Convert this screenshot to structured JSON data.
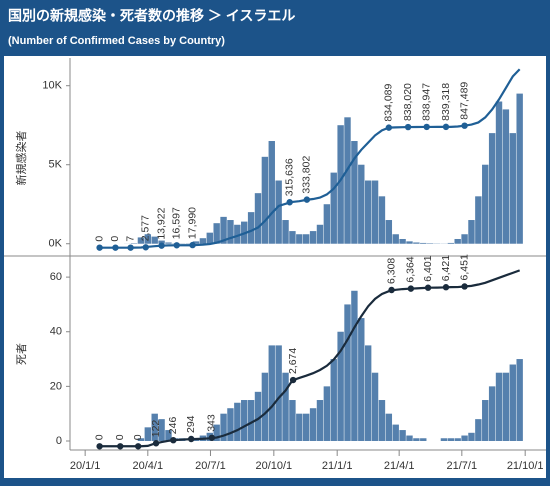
{
  "header": {
    "title": "国別の新規感染・死者数の推移 ＞ イスラエル",
    "subtitle": "(Number of Confirmed Cases by Country)"
  },
  "chart_data": [
    {
      "type": "bar",
      "ylabel": "新規感染者",
      "xlim": [
        "2019-12-10",
        "2021-10-08"
      ],
      "ylim": [
        -650,
        11500
      ],
      "yticks": [
        {
          "value": 0,
          "label": "0K"
        },
        {
          "value": 5000,
          "label": "5K"
        },
        {
          "value": 10000,
          "label": "10K"
        }
      ],
      "y2lim": [
        -44000,
        1290000
      ],
      "x": [
        "2020-01-22",
        "2020-02-01",
        "2020-02-11",
        "2020-02-21",
        "2020-03-02",
        "2020-03-12",
        "2020-03-22",
        "2020-04-01",
        "2020-04-11",
        "2020-04-21",
        "2020-05-01",
        "2020-05-11",
        "2020-05-21",
        "2020-05-31",
        "2020-06-10",
        "2020-06-20",
        "2020-06-30",
        "2020-07-10",
        "2020-07-20",
        "2020-07-30",
        "2020-08-09",
        "2020-08-19",
        "2020-08-29",
        "2020-09-08",
        "2020-09-18",
        "2020-09-28",
        "2020-10-08",
        "2020-10-18",
        "2020-10-28",
        "2020-11-07",
        "2020-11-17",
        "2020-11-27",
        "2020-12-07",
        "2020-12-17",
        "2020-12-27",
        "2021-01-06",
        "2021-01-16",
        "2021-01-26",
        "2021-02-05",
        "2021-02-15",
        "2021-02-25",
        "2021-03-07",
        "2021-03-17",
        "2021-03-27",
        "2021-04-06",
        "2021-04-16",
        "2021-04-26",
        "2021-05-06",
        "2021-05-16",
        "2021-05-26",
        "2021-06-05",
        "2021-06-15",
        "2021-06-25",
        "2021-07-05",
        "2021-07-15",
        "2021-07-25",
        "2021-08-04",
        "2021-08-14",
        "2021-08-24",
        "2021-09-03",
        "2021-09-13",
        "2021-09-23"
      ],
      "series": [
        {
          "type": "bar",
          "color": "#5580ad",
          "values": [
            0,
            0,
            0,
            0,
            5,
            30,
            400,
            600,
            450,
            200,
            80,
            20,
            15,
            20,
            150,
            350,
            700,
            1300,
            1700,
            1500,
            1200,
            1400,
            2000,
            3200,
            5500,
            6500,
            4000,
            1500,
            800,
            600,
            600,
            800,
            1200,
            2500,
            4500,
            7500,
            8000,
            6500,
            5000,
            4000,
            4000,
            3000,
            1500,
            600,
            300,
            150,
            80,
            50,
            30,
            15,
            10,
            50,
            300,
            600,
            1500,
            3000,
            5000,
            7000,
            9000,
            8500,
            7000,
            9500
          ]
        },
        {
          "type": "line",
          "axis": "y2",
          "color": "#1f5f96",
          "values": [
            0,
            0,
            0,
            1,
            3,
            100,
            1000,
            6000,
            10500,
            13900,
            16000,
            16500,
            16700,
            17000,
            18500,
            21000,
            25000,
            35000,
            50000,
            67000,
            82000,
            99000,
            117000,
            140000,
            185000,
            240000,
            290000,
            305000,
            318000,
            323000,
            332000,
            338000,
            348000,
            370000,
            410000,
            470000,
            545000,
            620000,
            680000,
            730000,
            780000,
            815000,
            834000,
            836000,
            837200,
            838050,
            838500,
            838800,
            838960,
            839050,
            839200,
            839500,
            842000,
            847500,
            855000,
            870000,
            905000,
            960000,
            1030000,
            1110000,
            1190000,
            1240000
          ]
        },
        {
          "type": "scatter",
          "axis": "y2",
          "color": "#1f5f96",
          "x": [
            "2020-01-22",
            "2020-02-14",
            "2020-03-07",
            "2020-03-29",
            "2020-04-21",
            "2020-05-13",
            "2020-06-05",
            "2020-10-24",
            "2020-11-18",
            "2021-03-17",
            "2021-04-14",
            "2021-05-11",
            "2021-06-08",
            "2021-07-05"
          ],
          "values": [
            0,
            0,
            7,
            2577,
            13922,
            16597,
            17990,
            315636,
            333802,
            834089,
            838020,
            838947,
            839318,
            847489
          ],
          "value_labels": [
            "0",
            "0",
            "7",
            "2,577",
            "13,922",
            "16,597",
            "17,990",
            "315,636",
            "333,802",
            "834,089",
            "838,020",
            "838,947",
            "839,318",
            "847,489"
          ]
        }
      ]
    },
    {
      "type": "bar",
      "ylabel": "死者",
      "xlim": [
        "2019-12-10",
        "2021-10-08"
      ],
      "xticks": [
        {
          "value": "2020-01-01",
          "label": "20/1/1"
        },
        {
          "value": "2020-04-01",
          "label": "20/4/1"
        },
        {
          "value": "2020-07-01",
          "label": "20/7/1"
        },
        {
          "value": "2020-10-01",
          "label": "20/10/1"
        },
        {
          "value": "2021-01-01",
          "label": "21/1/1"
        },
        {
          "value": "2021-04-01",
          "label": "21/4/1"
        },
        {
          "value": "2021-07-01",
          "label": "21/7/1"
        },
        {
          "value": "2021-10-01",
          "label": "21/10/1"
        }
      ],
      "ylim": [
        -3.3,
        67
      ],
      "yticks": [
        0,
        20,
        40,
        60
      ],
      "y2lim": [
        -150,
        7600
      ],
      "x": [
        "2020-01-22",
        "2020-02-01",
        "2020-02-11",
        "2020-02-21",
        "2020-03-02",
        "2020-03-12",
        "2020-03-22",
        "2020-04-01",
        "2020-04-11",
        "2020-04-21",
        "2020-05-01",
        "2020-05-11",
        "2020-05-21",
        "2020-05-31",
        "2020-06-10",
        "2020-06-20",
        "2020-06-30",
        "2020-07-10",
        "2020-07-20",
        "2020-07-30",
        "2020-08-09",
        "2020-08-19",
        "2020-08-29",
        "2020-09-08",
        "2020-09-18",
        "2020-09-28",
        "2020-10-08",
        "2020-10-18",
        "2020-10-28",
        "2020-11-07",
        "2020-11-17",
        "2020-11-27",
        "2020-12-07",
        "2020-12-17",
        "2020-12-27",
        "2021-01-06",
        "2021-01-16",
        "2021-01-26",
        "2021-02-05",
        "2021-02-15",
        "2021-02-25",
        "2021-03-07",
        "2021-03-17",
        "2021-03-27",
        "2021-04-06",
        "2021-04-16",
        "2021-04-26",
        "2021-05-06",
        "2021-05-16",
        "2021-05-26",
        "2021-06-05",
        "2021-06-15",
        "2021-06-25",
        "2021-07-05",
        "2021-07-15",
        "2021-07-25",
        "2021-08-04",
        "2021-08-14",
        "2021-08-24",
        "2021-09-03",
        "2021-09-13",
        "2021-09-23"
      ],
      "series": [
        {
          "type": "bar",
          "color": "#5580ad",
          "values": [
            0,
            0,
            0,
            0,
            0,
            0,
            1,
            5,
            10,
            8,
            4,
            1,
            1,
            0,
            1,
            2,
            3,
            6,
            10,
            12,
            14,
            15,
            15,
            18,
            25,
            35,
            35,
            25,
            15,
            10,
            10,
            12,
            15,
            20,
            30,
            40,
            50,
            55,
            45,
            35,
            25,
            15,
            10,
            6,
            4,
            2,
            1,
            1,
            0,
            0,
            1,
            1,
            1,
            2,
            3,
            8,
            15,
            20,
            25,
            25,
            28,
            30
          ]
        },
        {
          "type": "line",
          "axis": "y2",
          "color": "#1a2b3c",
          "values": [
            0,
            0,
            0,
            0,
            0,
            0,
            1,
            15,
            110,
            170,
            220,
            250,
            270,
            285,
            295,
            305,
            322,
            355,
            430,
            530,
            650,
            800,
            950,
            1100,
            1320,
            1600,
            1950,
            2250,
            2660,
            2760,
            2850,
            2950,
            3080,
            3250,
            3500,
            3850,
            4300,
            4800,
            5250,
            5650,
            5950,
            6150,
            6260,
            6315,
            6345,
            6362,
            6375,
            6390,
            6402,
            6405,
            6412,
            6423,
            6428,
            6451,
            6475,
            6530,
            6600,
            6700,
            6800,
            6900,
            7000,
            7100
          ]
        },
        {
          "type": "scatter",
          "axis": "y2",
          "color": "#1a2b3c",
          "x": [
            "2020-01-22",
            "2020-02-21",
            "2020-03-18",
            "2020-04-13",
            "2020-05-08",
            "2020-06-03",
            "2020-07-03",
            "2020-10-29",
            "2021-03-21",
            "2021-04-18",
            "2021-05-13",
            "2021-06-08",
            "2021-07-05"
          ],
          "values": [
            0,
            0,
            0,
            122,
            246,
            294,
            343,
            2674,
            6308,
            6364,
            6401,
            6421,
            6451
          ],
          "value_labels": [
            "0",
            "0",
            "0",
            "122",
            "246",
            "294",
            "343",
            "2,674",
            "6,308",
            "6,364",
            "6,401",
            "6,421",
            "6,451"
          ]
        }
      ]
    }
  ]
}
